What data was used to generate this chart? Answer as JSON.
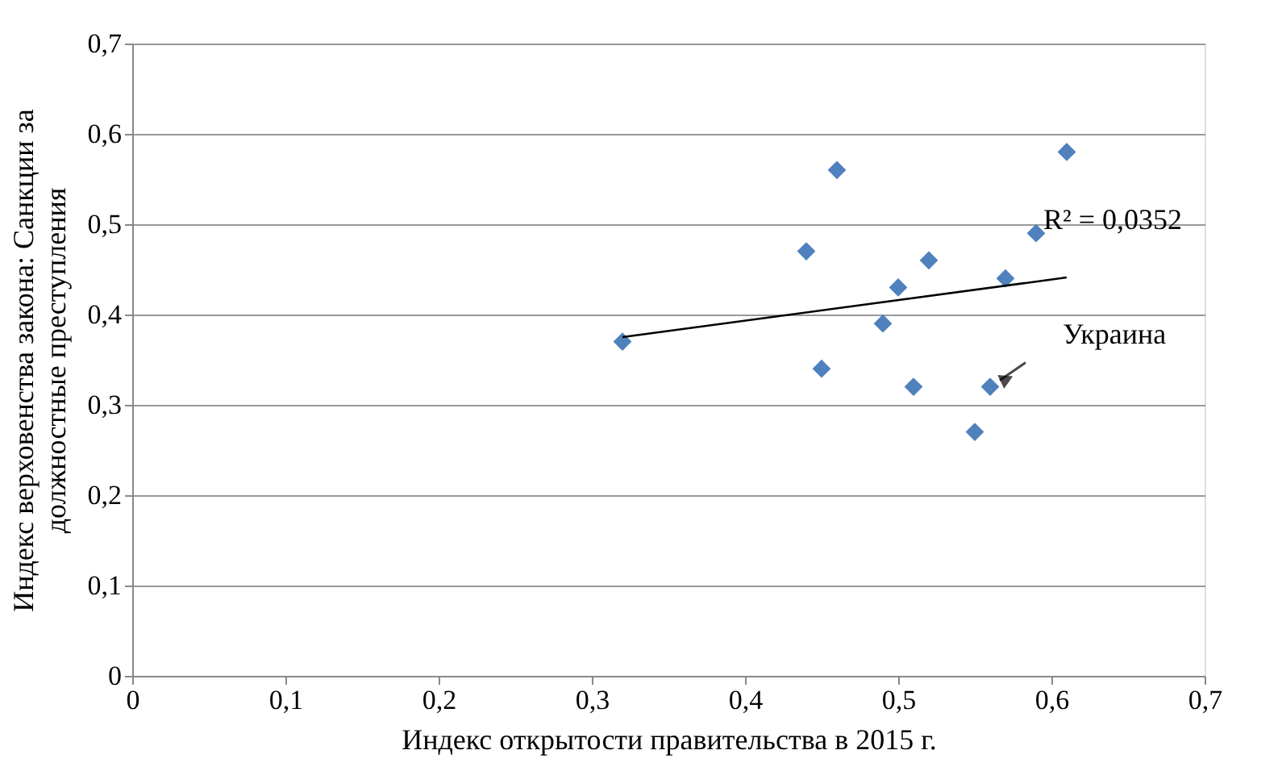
{
  "chart_data": {
    "type": "scatter",
    "xlabel": "Индекс открытости правительства в 2015 г.",
    "ylabel": "Индекс верховенства закона: Санкции за\nдолжностные преступления",
    "series": [
      {
        "color": "#4f81bd",
        "marker": "diamond",
        "x": [
          0.32,
          0.44,
          0.45,
          0.46,
          0.49,
          0.5,
          0.51,
          0.52,
          0.55,
          0.56,
          0.57,
          0.59,
          0.61
        ],
        "values": [
          0.37,
          0.47,
          0.34,
          0.56,
          0.39,
          0.43,
          0.32,
          0.46,
          0.27,
          0.32,
          0.44,
          0.49,
          0.58
        ]
      },
      {
        "type": "line",
        "color": "#000000",
        "marker": "none",
        "line_style": "solid",
        "x": [
          0.32,
          0.61
        ],
        "values": [
          0.375,
          0.441
        ]
      }
    ],
    "xlim": [
      0,
      0.7
    ],
    "ylim": [
      0,
      0.7
    ],
    "xticks": [
      {
        "value": 0,
        "label": "0"
      },
      {
        "value": 0.1,
        "label": "0,1"
      },
      {
        "value": 0.2,
        "label": "0,2"
      },
      {
        "value": 0.3,
        "label": "0,3"
      },
      {
        "value": 0.4,
        "label": "0,4"
      },
      {
        "value": 0.5,
        "label": "0,5"
      },
      {
        "value": 0.6,
        "label": "0,6"
      },
      {
        "value": 0.7,
        "label": "0,7"
      }
    ],
    "yticks": [
      {
        "value": 0,
        "label": "0"
      },
      {
        "value": 0.1,
        "label": "0,1"
      },
      {
        "value": 0.2,
        "label": "0,2"
      },
      {
        "value": 0.3,
        "label": "0,3"
      },
      {
        "value": 0.4,
        "label": "0,4"
      },
      {
        "value": 0.5,
        "label": "0,5"
      },
      {
        "value": 0.6,
        "label": "0,6"
      },
      {
        "value": 0.7,
        "label": "0,7"
      }
    ],
    "grid": "y",
    "annotations": [
      "R² = 0,0352",
      {
        "text": "Украина",
        "x": 0.56,
        "y": 0.32
      }
    ]
  }
}
